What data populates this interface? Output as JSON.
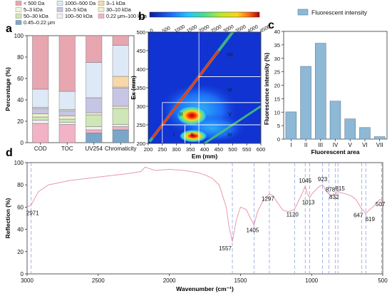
{
  "chart_data": [
    {
      "panel": "a",
      "type": "bar",
      "stacked": true,
      "ylabel": "Percentage (%)",
      "ylim": [
        0,
        100
      ],
      "yticks": [
        0,
        20,
        40,
        60,
        80,
        100
      ],
      "categories": [
        "COD",
        "TOC",
        "UV254",
        "Chromaticity"
      ],
      "legend_position": "top",
      "series": [
        {
          "name": "0.45–0.22 μm",
          "color": "#7aa6c8",
          "values": [
            0,
            0,
            9,
            12
          ]
        },
        {
          "name": "0.22 μm–100 kDa",
          "color": "#f2b3c6",
          "values": [
            18,
            17,
            3,
            3
          ]
        },
        {
          "name": "100–50 kDa",
          "color": "#f0f0f4",
          "values": [
            3,
            2,
            3,
            2
          ]
        },
        {
          "name": "50–30 kDa",
          "color": "#cfe6b8",
          "values": [
            3,
            3,
            11,
            15
          ]
        },
        {
          "name": "30–10 kDa",
          "color": "#efefcc",
          "values": [
            3,
            3,
            2,
            2
          ]
        },
        {
          "name": "10–5 kDa",
          "color": "#c7c5e6",
          "values": [
            5,
            5,
            14,
            17
          ]
        },
        {
          "name": "5–3 kDa",
          "color": "#f4f6d8",
          "values": [
            1,
            1,
            0,
            1
          ]
        },
        {
          "name": "3–1 kDa",
          "color": "#f7d9a9",
          "values": [
            0,
            0,
            0,
            10
          ]
        },
        {
          "name": "1000–500 Da",
          "color": "#dde9f6",
          "values": [
            17,
            17,
            33,
            29
          ]
        },
        {
          "name": "< 500 Da",
          "color": "#e7a6b0",
          "values": [
            50,
            52,
            25,
            9
          ]
        }
      ]
    },
    {
      "panel": "b",
      "type": "heatmap",
      "xlabel": "Em (mm)",
      "ylabel": "Ex (mm)",
      "xlim": [
        200,
        600
      ],
      "ylim": [
        200,
        500
      ],
      "xticks": [
        200,
        250,
        300,
        350,
        400,
        450,
        500,
        550,
        600
      ],
      "yticks": [
        200,
        250,
        300,
        350,
        400,
        450,
        500
      ],
      "colorbar": {
        "ticks": [
          0,
          500,
          1000,
          1500,
          2000,
          2500,
          3000,
          3500,
          4000,
          4500
        ],
        "range": [
          0,
          4500
        ]
      },
      "regions": [
        {
          "label": "I",
          "em": [
            250,
            330
          ],
          "ex": [
            200,
            250
          ]
        },
        {
          "label": "II",
          "em": [
            330,
            380
          ],
          "ex": [
            200,
            250
          ]
        },
        {
          "label": "III",
          "em": [
            250,
            380
          ],
          "ex": [
            250,
            310
          ]
        },
        {
          "label": "IV",
          "em": [
            380,
            600
          ],
          "ex": [
            200,
            250
          ]
        },
        {
          "label": "V",
          "em": [
            380,
            600
          ],
          "ex": [
            250,
            310
          ]
        },
        {
          "label": "VI",
          "em": [
            380,
            600
          ],
          "ex": [
            310,
            380
          ]
        },
        {
          "label": "VII",
          "em": [
            380,
            600
          ],
          "ex": [
            380,
            500
          ]
        }
      ],
      "peaks": [
        {
          "em": 355,
          "ex": 275,
          "intensity": 4500
        },
        {
          "em": 360,
          "ex": 220,
          "intensity": 4000
        }
      ]
    },
    {
      "panel": "c",
      "type": "bar",
      "xlabel": "Fluorescent area",
      "ylabel": "Fluorescence intensity (%)",
      "ylim": [
        0,
        40
      ],
      "yticks": [
        0,
        5,
        10,
        15,
        20,
        25,
        30,
        35,
        40
      ],
      "categories": [
        "I",
        "II",
        "III",
        "IV",
        "V",
        "VI",
        "VII"
      ],
      "series": [
        {
          "name": "Fluorescent intensity",
          "color": "#8db8d6",
          "values": [
            10.1,
            27.0,
            35.6,
            14.1,
            7.5,
            4.3,
            0.9
          ]
        }
      ],
      "legend_position": "top-right"
    },
    {
      "panel": "d",
      "type": "line",
      "xlabel": "Wavenumber (cm⁻¹)",
      "ylabel": "Reflection (%)",
      "xlim": [
        3000,
        500
      ],
      "ylim": [
        0,
        100
      ],
      "xticks": [
        3000,
        2500,
        2000,
        1500,
        1000,
        500
      ],
      "yticks": [
        0,
        20,
        40,
        60,
        80,
        100
      ],
      "series": [
        {
          "name": "",
          "color": "#e89aa8",
          "x": [
            3000,
            2971,
            2920,
            2850,
            2700,
            2500,
            2300,
            2200,
            2170,
            2150,
            2100,
            2000,
            1900,
            1800,
            1750,
            1700,
            1650,
            1600,
            1580,
            1557,
            1530,
            1500,
            1460,
            1430,
            1405,
            1380,
            1340,
            1297,
            1270,
            1240,
            1200,
            1160,
            1120,
            1090,
            1060,
            1045,
            1030,
            1013,
            990,
            960,
            940,
            923,
            905,
            890,
            878,
            860,
            845,
            832,
            822,
            815,
            800,
            760,
            720,
            690,
            665,
            647,
            635,
            619,
            600,
            570,
            540,
            520,
            507,
            500
          ],
          "y": [
            60,
            62,
            74,
            80,
            84,
            87,
            90,
            92,
            96,
            95,
            93,
            94,
            93,
            91,
            89,
            86,
            80,
            60,
            42,
            29,
            48,
            60,
            58,
            50,
            44,
            56,
            66,
            72,
            70,
            64,
            57,
            56,
            58,
            66,
            74,
            79,
            72,
            69,
            73,
            77,
            79,
            80,
            76,
            73,
            72,
            70,
            72,
            71,
            74,
            75,
            73,
            72,
            70,
            67,
            62,
            58,
            57,
            54,
            57,
            60,
            64,
            67,
            66,
            62
          ]
        }
      ],
      "reference_lines": [
        2971,
        1557,
        1405,
        1297,
        1120,
        1045,
        1013,
        923,
        878,
        832,
        815,
        647,
        619,
        507
      ]
    }
  ],
  "annotations": {
    "d_peaks": [
      "2971",
      "1557",
      "1405",
      "1297",
      "1120",
      "1045",
      "1013",
      "923",
      "878",
      "832",
      "815",
      "647",
      "619",
      "507"
    ]
  }
}
